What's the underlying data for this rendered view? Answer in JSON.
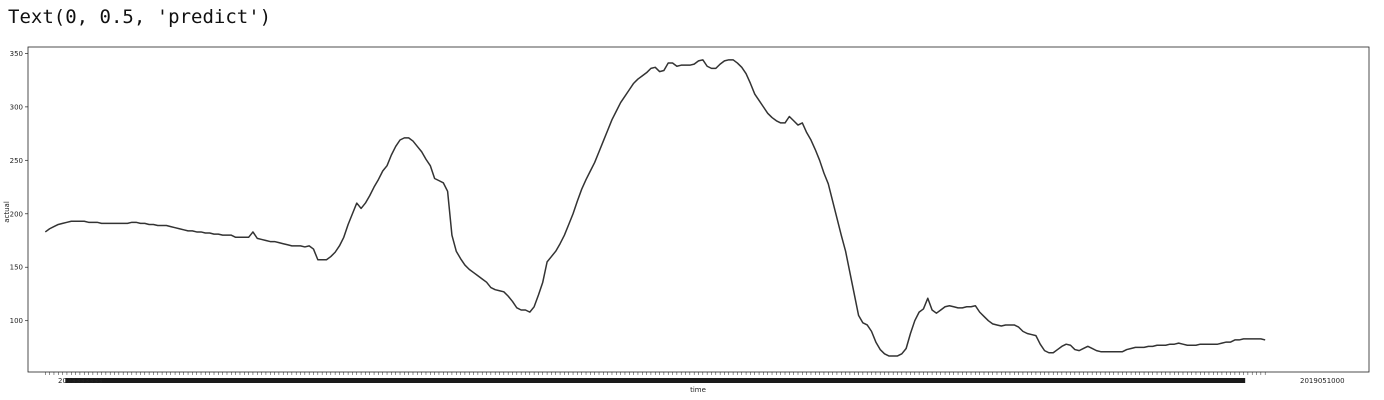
{
  "output_text": "Text(0, 0.5, 'predict')",
  "chart_data": {
    "type": "line",
    "xlabel": "time",
    "ylabel": "actual",
    "xlim": [
      -4,
      306
    ],
    "ylim": [
      52,
      356
    ],
    "yticks": [
      100,
      150,
      200,
      250,
      300,
      350
    ],
    "grid": false,
    "x_tick_label_first": "2023333333",
    "x_tick_label_last": "2019051000",
    "series": [
      {
        "color": "#333333",
        "values": [
          183,
          186,
          188,
          190,
          191,
          192,
          193,
          193,
          193,
          193,
          192,
          192,
          192,
          191,
          191,
          191,
          191,
          191,
          191,
          191,
          192,
          192,
          191,
          191,
          190,
          190,
          189,
          189,
          189,
          188,
          187,
          186,
          185,
          184,
          184,
          183,
          183,
          182,
          182,
          181,
          181,
          180,
          180,
          180,
          178,
          178,
          178,
          178,
          183,
          177,
          176,
          175,
          174,
          174,
          173,
          172,
          171,
          170,
          170,
          170,
          169,
          170,
          167,
          157,
          157,
          157,
          160,
          164,
          170,
          178,
          190,
          200,
          210,
          205,
          210,
          217,
          225,
          232,
          240,
          245,
          255,
          263,
          269,
          271,
          271,
          268,
          263,
          258,
          251,
          245,
          233,
          231,
          229,
          221,
          180,
          165,
          158,
          152,
          148,
          145,
          142,
          139,
          136,
          131,
          129,
          128,
          127,
          123,
          118,
          112,
          110,
          110,
          108,
          113,
          124,
          136,
          155,
          160,
          165,
          172,
          180,
          190,
          200,
          212,
          223,
          232,
          240,
          248,
          258,
          268,
          278,
          288,
          296,
          304,
          310,
          316,
          322,
          326,
          329,
          332,
          336,
          337,
          333,
          334,
          341,
          341,
          338,
          339,
          339,
          339,
          340,
          343,
          344,
          338,
          336,
          336,
          340,
          343,
          344,
          344,
          341,
          337,
          331,
          322,
          312,
          306,
          300,
          294,
          290,
          287,
          285,
          285,
          291,
          287,
          283,
          285,
          276,
          269,
          260,
          250,
          238,
          228,
          212,
          196,
          180,
          165,
          145,
          125,
          105,
          98,
          96,
          90,
          80,
          73,
          69,
          67,
          67,
          67,
          69,
          74,
          88,
          100,
          108,
          111,
          121,
          110,
          107,
          110,
          113,
          114,
          113,
          112,
          112,
          113,
          113,
          114,
          108,
          104,
          100,
          97,
          96,
          95,
          96,
          96,
          96,
          94,
          90,
          88,
          87,
          86,
          78,
          72,
          70,
          70,
          73,
          76,
          78,
          77,
          73,
          72,
          74,
          76,
          74,
          72,
          71,
          71,
          71,
          71,
          71,
          71,
          73,
          74,
          75,
          75,
          75,
          76,
          76,
          77,
          77,
          77,
          78,
          78,
          79,
          78,
          77,
          77,
          77,
          78,
          78,
          78,
          78,
          78,
          79,
          80,
          80,
          82,
          82,
          83,
          83,
          83,
          83,
          83,
          82
        ]
      }
    ]
  }
}
